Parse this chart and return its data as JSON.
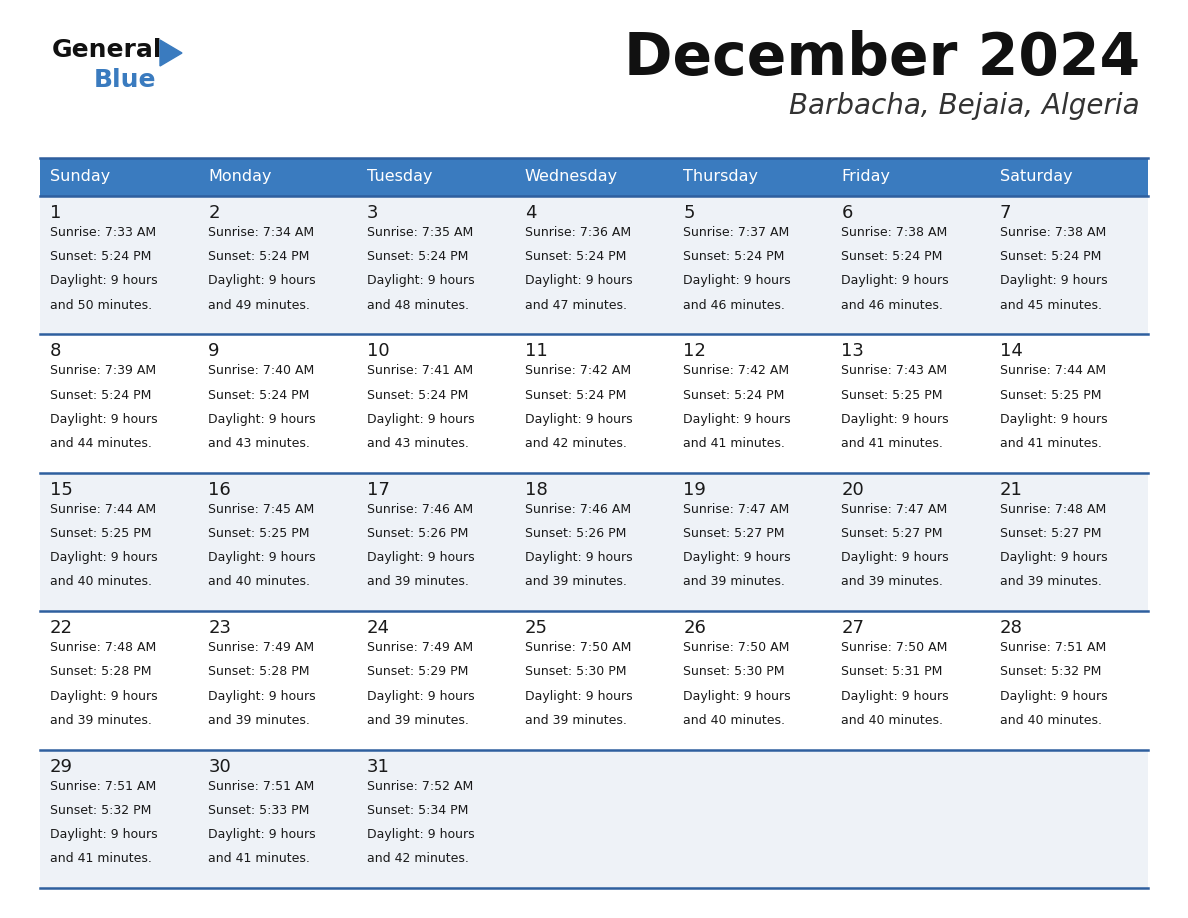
{
  "title": "December 2024",
  "subtitle": "Barbacha, Bejaia, Algeria",
  "header_color": "#3a7bbf",
  "header_text_color": "#ffffff",
  "day_names": [
    "Sunday",
    "Monday",
    "Tuesday",
    "Wednesday",
    "Thursday",
    "Friday",
    "Saturday"
  ],
  "row0_color": "#eef2f7",
  "row1_color": "#ffffff",
  "border_color": "#2e5f9e",
  "text_color": "#1a1a1a",
  "days": [
    {
      "day": 1,
      "col": 0,
      "row": 0,
      "sunrise": "7:33 AM",
      "sunset": "5:24 PM",
      "daylight": "9 hours\nand 50 minutes."
    },
    {
      "day": 2,
      "col": 1,
      "row": 0,
      "sunrise": "7:34 AM",
      "sunset": "5:24 PM",
      "daylight": "9 hours\nand 49 minutes."
    },
    {
      "day": 3,
      "col": 2,
      "row": 0,
      "sunrise": "7:35 AM",
      "sunset": "5:24 PM",
      "daylight": "9 hours\nand 48 minutes."
    },
    {
      "day": 4,
      "col": 3,
      "row": 0,
      "sunrise": "7:36 AM",
      "sunset": "5:24 PM",
      "daylight": "9 hours\nand 47 minutes."
    },
    {
      "day": 5,
      "col": 4,
      "row": 0,
      "sunrise": "7:37 AM",
      "sunset": "5:24 PM",
      "daylight": "9 hours\nand 46 minutes."
    },
    {
      "day": 6,
      "col": 5,
      "row": 0,
      "sunrise": "7:38 AM",
      "sunset": "5:24 PM",
      "daylight": "9 hours\nand 46 minutes."
    },
    {
      "day": 7,
      "col": 6,
      "row": 0,
      "sunrise": "7:38 AM",
      "sunset": "5:24 PM",
      "daylight": "9 hours\nand 45 minutes."
    },
    {
      "day": 8,
      "col": 0,
      "row": 1,
      "sunrise": "7:39 AM",
      "sunset": "5:24 PM",
      "daylight": "9 hours\nand 44 minutes."
    },
    {
      "day": 9,
      "col": 1,
      "row": 1,
      "sunrise": "7:40 AM",
      "sunset": "5:24 PM",
      "daylight": "9 hours\nand 43 minutes."
    },
    {
      "day": 10,
      "col": 2,
      "row": 1,
      "sunrise": "7:41 AM",
      "sunset": "5:24 PM",
      "daylight": "9 hours\nand 43 minutes."
    },
    {
      "day": 11,
      "col": 3,
      "row": 1,
      "sunrise": "7:42 AM",
      "sunset": "5:24 PM",
      "daylight": "9 hours\nand 42 minutes."
    },
    {
      "day": 12,
      "col": 4,
      "row": 1,
      "sunrise": "7:42 AM",
      "sunset": "5:24 PM",
      "daylight": "9 hours\nand 41 minutes."
    },
    {
      "day": 13,
      "col": 5,
      "row": 1,
      "sunrise": "7:43 AM",
      "sunset": "5:25 PM",
      "daylight": "9 hours\nand 41 minutes."
    },
    {
      "day": 14,
      "col": 6,
      "row": 1,
      "sunrise": "7:44 AM",
      "sunset": "5:25 PM",
      "daylight": "9 hours\nand 41 minutes."
    },
    {
      "day": 15,
      "col": 0,
      "row": 2,
      "sunrise": "7:44 AM",
      "sunset": "5:25 PM",
      "daylight": "9 hours\nand 40 minutes."
    },
    {
      "day": 16,
      "col": 1,
      "row": 2,
      "sunrise": "7:45 AM",
      "sunset": "5:25 PM",
      "daylight": "9 hours\nand 40 minutes."
    },
    {
      "day": 17,
      "col": 2,
      "row": 2,
      "sunrise": "7:46 AM",
      "sunset": "5:26 PM",
      "daylight": "9 hours\nand 39 minutes."
    },
    {
      "day": 18,
      "col": 3,
      "row": 2,
      "sunrise": "7:46 AM",
      "sunset": "5:26 PM",
      "daylight": "9 hours\nand 39 minutes."
    },
    {
      "day": 19,
      "col": 4,
      "row": 2,
      "sunrise": "7:47 AM",
      "sunset": "5:27 PM",
      "daylight": "9 hours\nand 39 minutes."
    },
    {
      "day": 20,
      "col": 5,
      "row": 2,
      "sunrise": "7:47 AM",
      "sunset": "5:27 PM",
      "daylight": "9 hours\nand 39 minutes."
    },
    {
      "day": 21,
      "col": 6,
      "row": 2,
      "sunrise": "7:48 AM",
      "sunset": "5:27 PM",
      "daylight": "9 hours\nand 39 minutes."
    },
    {
      "day": 22,
      "col": 0,
      "row": 3,
      "sunrise": "7:48 AM",
      "sunset": "5:28 PM",
      "daylight": "9 hours\nand 39 minutes."
    },
    {
      "day": 23,
      "col": 1,
      "row": 3,
      "sunrise": "7:49 AM",
      "sunset": "5:28 PM",
      "daylight": "9 hours\nand 39 minutes."
    },
    {
      "day": 24,
      "col": 2,
      "row": 3,
      "sunrise": "7:49 AM",
      "sunset": "5:29 PM",
      "daylight": "9 hours\nand 39 minutes."
    },
    {
      "day": 25,
      "col": 3,
      "row": 3,
      "sunrise": "7:50 AM",
      "sunset": "5:30 PM",
      "daylight": "9 hours\nand 39 minutes."
    },
    {
      "day": 26,
      "col": 4,
      "row": 3,
      "sunrise": "7:50 AM",
      "sunset": "5:30 PM",
      "daylight": "9 hours\nand 40 minutes."
    },
    {
      "day": 27,
      "col": 5,
      "row": 3,
      "sunrise": "7:50 AM",
      "sunset": "5:31 PM",
      "daylight": "9 hours\nand 40 minutes."
    },
    {
      "day": 28,
      "col": 6,
      "row": 3,
      "sunrise": "7:51 AM",
      "sunset": "5:32 PM",
      "daylight": "9 hours\nand 40 minutes."
    },
    {
      "day": 29,
      "col": 0,
      "row": 4,
      "sunrise": "7:51 AM",
      "sunset": "5:32 PM",
      "daylight": "9 hours\nand 41 minutes."
    },
    {
      "day": 30,
      "col": 1,
      "row": 4,
      "sunrise": "7:51 AM",
      "sunset": "5:33 PM",
      "daylight": "9 hours\nand 41 minutes."
    },
    {
      "day": 31,
      "col": 2,
      "row": 4,
      "sunrise": "7:52 AM",
      "sunset": "5:34 PM",
      "daylight": "9 hours\nand 42 minutes."
    }
  ]
}
